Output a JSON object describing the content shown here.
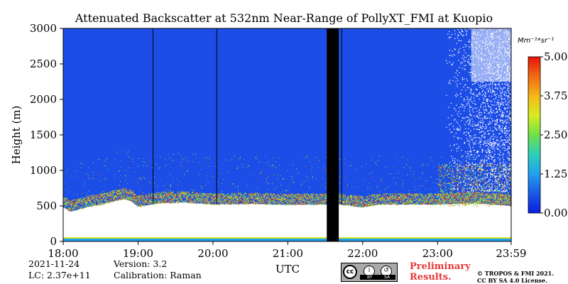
{
  "title": "Attenuated Backscatter at 532nm Near-Range of PollyXT_FMI at Kuopio",
  "meta": {
    "date": "2021-11-24",
    "lc": "LC: 2.37e+11",
    "version": "Version: 3.2",
    "calibration": "Calibration: Raman"
  },
  "watermark": {
    "line1": "Preliminary",
    "line2": "Results.",
    "color": "#e8383a"
  },
  "copyright": {
    "line1": "© TROPOS & FMI 2021.",
    "line2": "CC BY SA 4.0 License."
  },
  "license_badge": {
    "logo": "cc",
    "icons": [
      "by-icon",
      "sa-icon"
    ],
    "labels": [
      "BY",
      "SA"
    ]
  },
  "colors": {
    "background_signal": "#1c4de6",
    "near_surface": "#ffffff",
    "missing_data": "#000000",
    "colormap": [
      "#0a1ee0",
      "#1b58e6",
      "#20a0f0",
      "#2ecfb8",
      "#6fe04a",
      "#d8ec22",
      "#f5b817",
      "#f06a12",
      "#e8140c"
    ]
  },
  "chart_data": {
    "type": "heatmap",
    "title": "Attenuated Backscatter at 532nm Near-Range of PollyXT_FMI at Kuopio",
    "xlabel": "UTC",
    "ylabel": "Height (m)",
    "x_ticks": [
      "18:00",
      "19:00",
      "20:00",
      "21:00",
      "22:00",
      "23:00",
      "23:59"
    ],
    "x_tick_hours": [
      18.0,
      19.0,
      20.0,
      21.0,
      22.0,
      23.0,
      23.983
    ],
    "xlim_hours": [
      18.0,
      23.983
    ],
    "y_ticks": [
      0,
      500,
      1000,
      1500,
      2000,
      2500,
      3000
    ],
    "ylim": [
      0,
      3000
    ],
    "colorbar": {
      "label": "Mm⁻¹*sr⁻¹",
      "ticks": [
        "0.00",
        "1.25",
        "2.50",
        "3.75",
        "5.00"
      ],
      "tick_values": [
        0.0,
        1.25,
        2.5,
        3.75,
        5.0
      ],
      "range": [
        0.0,
        5.0
      ]
    },
    "layer_top_profile": [
      {
        "t": 18.0,
        "h": 480
      },
      {
        "t": 18.1,
        "h": 420
      },
      {
        "t": 18.2,
        "h": 450
      },
      {
        "t": 18.35,
        "h": 490
      },
      {
        "t": 18.5,
        "h": 520
      },
      {
        "t": 18.7,
        "h": 570
      },
      {
        "t": 18.8,
        "h": 600
      },
      {
        "t": 18.9,
        "h": 570
      },
      {
        "t": 19.0,
        "h": 490
      },
      {
        "t": 19.3,
        "h": 540
      },
      {
        "t": 19.6,
        "h": 550
      },
      {
        "t": 20.0,
        "h": 520
      },
      {
        "t": 20.5,
        "h": 530
      },
      {
        "t": 21.0,
        "h": 515
      },
      {
        "t": 21.45,
        "h": 520
      },
      {
        "t": 21.7,
        "h": 520
      },
      {
        "t": 22.0,
        "h": 480
      },
      {
        "t": 22.2,
        "h": 520
      },
      {
        "t": 22.6,
        "h": 520
      },
      {
        "t": 23.0,
        "h": 520
      },
      {
        "t": 23.5,
        "h": 540
      },
      {
        "t": 23.983,
        "h": 500
      }
    ],
    "surface_band": {
      "h_min": 0,
      "h_max": 40,
      "value": 1.5
    },
    "missing_interval_hours": [
      21.52,
      21.68
    ],
    "thin_gap_hours": [
      19.2,
      20.05,
      21.72
    ],
    "high_cloud": {
      "t_start": 23.1,
      "t_end": 23.983,
      "h_min": 700,
      "h_max": 3000,
      "dense_from": 23.45,
      "dense_h": [
        2250,
        3000
      ]
    },
    "aerosol_patch": {
      "t_start": 23.0,
      "t_end": 23.983,
      "h_min": 500,
      "h_max": 1100,
      "level": 3.5
    }
  }
}
